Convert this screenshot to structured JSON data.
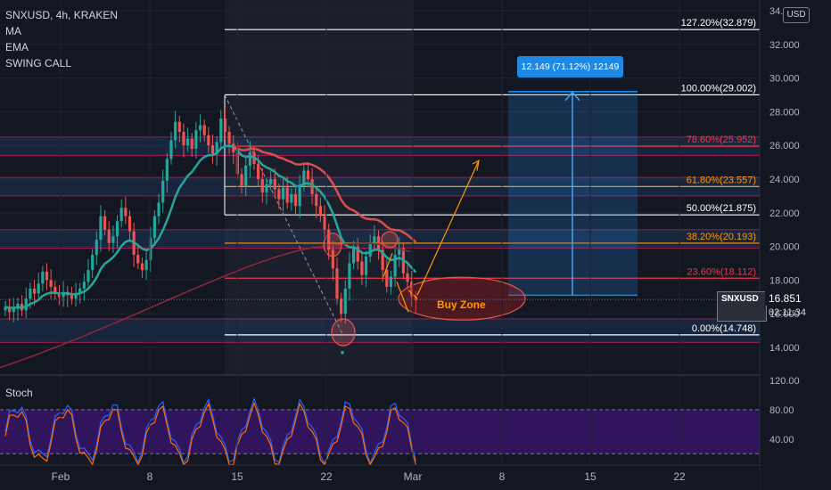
{
  "header": {
    "symbol_line": "SNXUSD, 4h, KRAKEN",
    "indicators": [
      "MA",
      "EMA",
      "SWING CALL"
    ]
  },
  "currency": "USD",
  "price_axis": {
    "ticks": [
      "34.000",
      "32.000",
      "30.000",
      "28.000",
      "26.000",
      "24.000",
      "22.000",
      "20.000",
      "18.000",
      "16.000",
      "14.000"
    ]
  },
  "stoch_axis": {
    "ticks": [
      "120.00",
      "80.00",
      "40.00"
    ]
  },
  "time_axis": {
    "ticks": [
      "Feb",
      "8",
      "15",
      "22",
      "Mar",
      "8",
      "15",
      "22"
    ]
  },
  "fib_levels": [
    {
      "label": "127.20%(32.879)",
      "color": "#ffffff"
    },
    {
      "label": "100.00%(29.002)",
      "color": "#ffffff"
    },
    {
      "label": "78.60%(25.952)",
      "color": "#f23645"
    },
    {
      "label": "61.80%(23.557)",
      "color": "#ff9800"
    },
    {
      "label": "50.00%(21.875)",
      "color": "#ffffff"
    },
    {
      "label": "38.20%(20.193)",
      "color": "#ff9800"
    },
    {
      "label": "23.60%(18.112)",
      "color": "#f23645"
    },
    {
      "label": "0.00%(14.748)",
      "color": "#ffffff"
    }
  ],
  "measure_label": "12.149 (71.12%) 12149",
  "buy_zone_label": "Buy Zone",
  "price_tag": {
    "symbol": "SNXUSD",
    "last_price": "16.851",
    "countdown": "02:11:34"
  },
  "stoch_label": "Stoch",
  "colors": {
    "background": "#131722",
    "fib_white": "#ffffff",
    "fib_red": "#f23645",
    "fib_orange": "#ff9800",
    "measure_blue": "#1e88e5",
    "ema_teal": "#26a69a",
    "ma_red": "#ef5350",
    "stoch_fill": "#4a148c"
  }
}
